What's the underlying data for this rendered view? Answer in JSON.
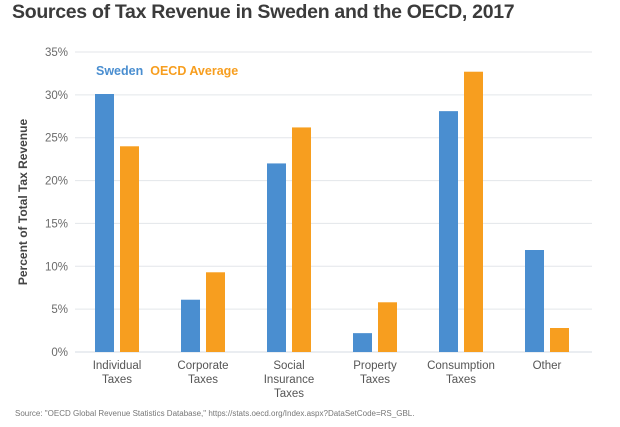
{
  "chart_data": {
    "type": "bar",
    "title": "Sources of Tax Revenue in Sweden and the OECD, 2017",
    "xlabel": "",
    "ylabel": "Percent of Total Tax Revenue",
    "ylim": [
      0,
      35
    ],
    "yticks": [
      0,
      5,
      10,
      15,
      20,
      25,
      30,
      35
    ],
    "ytick_labels": [
      "0%",
      "5%",
      "10%",
      "15%",
      "20%",
      "25%",
      "30%",
      "35%"
    ],
    "grid": true,
    "legend_position": "top-left",
    "categories": [
      [
        "Individual",
        "Taxes"
      ],
      [
        "Corporate",
        "Taxes"
      ],
      [
        "Social",
        "Insurance",
        "Taxes"
      ],
      [
        "Property",
        "Taxes"
      ],
      [
        "Consumption",
        "Taxes"
      ],
      [
        "Other"
      ]
    ],
    "series": [
      {
        "name": "Sweden",
        "color": "#4a8ed0",
        "values": [
          30.1,
          6.1,
          22.0,
          2.2,
          28.1,
          11.9
        ]
      },
      {
        "name": "OECD Average",
        "color": "#f79e1f",
        "values": [
          24.0,
          9.3,
          26.2,
          5.8,
          32.7,
          2.8
        ]
      }
    ],
    "source": "Source: \"OECD Global Revenue Statistics Database,\" https://stats.oecd.org/Index.aspx?DataSetCode=RS_GBL."
  }
}
